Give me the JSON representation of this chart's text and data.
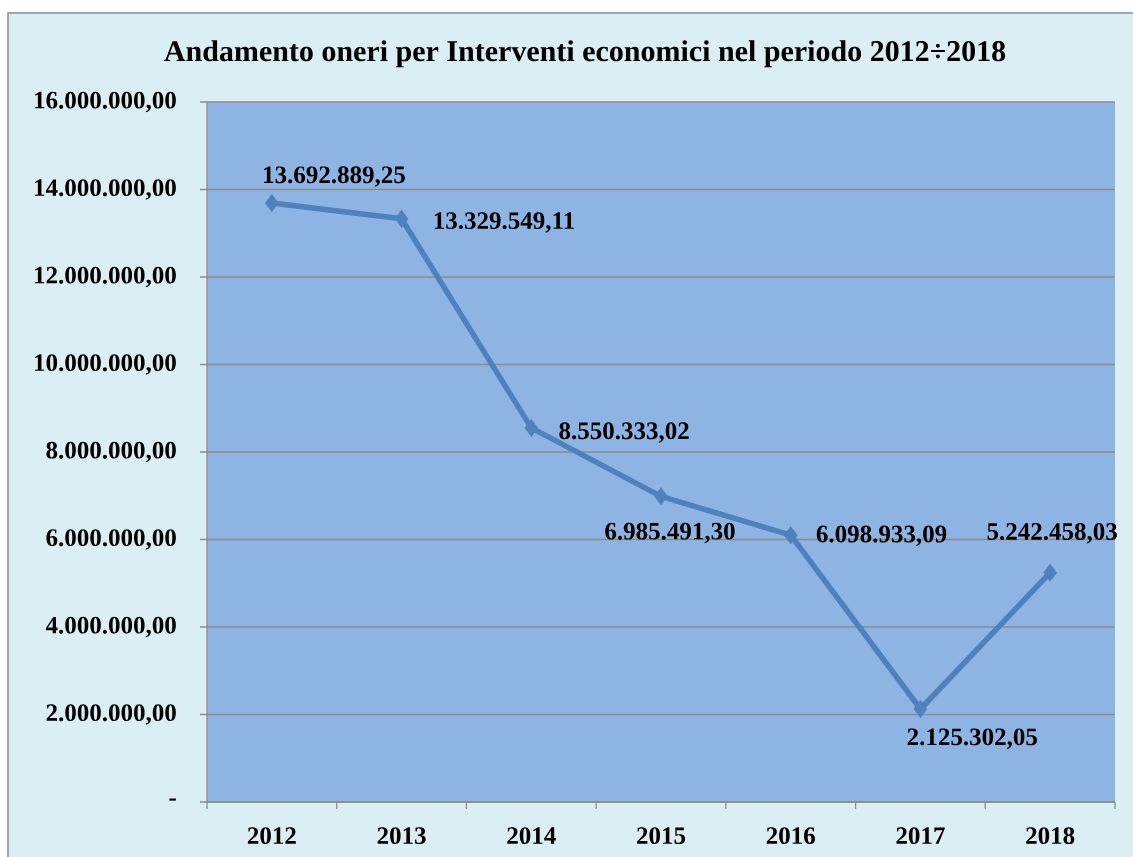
{
  "chart_data": {
    "type": "line",
    "title": "Andamento oneri per Interventi economici nel periodo 2012÷2018",
    "categories": [
      "2012",
      "2013",
      "2014",
      "2015",
      "2016",
      "2017",
      "2018"
    ],
    "values": [
      13692889.25,
      13329549.11,
      8550333.02,
      6985491.3,
      6098933.09,
      2125302.05,
      5242458.03
    ],
    "value_labels": [
      "13.692.889,25",
      "13.329.549,11",
      "8.550.333,02",
      "6.985.491,30",
      "6.098.933,09",
      "2.125.302,05",
      "5.242.458,03"
    ],
    "color": "#4f81bd",
    "marker": "diamond",
    "line_style": "solid",
    "grid": "y",
    "ylim": [
      0,
      16000000
    ],
    "yticks": [
      {
        "value": 0,
        "label": "-"
      },
      {
        "value": 2000000,
        "label": "2.000.000,00"
      },
      {
        "value": 4000000,
        "label": "4.000.000,00"
      },
      {
        "value": 6000000,
        "label": "6.000.000,00"
      },
      {
        "value": 8000000,
        "label": "8.000.000,00"
      },
      {
        "value": 10000000,
        "label": "10.000.000,00"
      },
      {
        "value": 12000000,
        "label": "12.000.000,00"
      },
      {
        "value": 14000000,
        "label": "14.000.000,00"
      },
      {
        "value": 16000000,
        "label": "16.000.000,00"
      }
    ]
  }
}
